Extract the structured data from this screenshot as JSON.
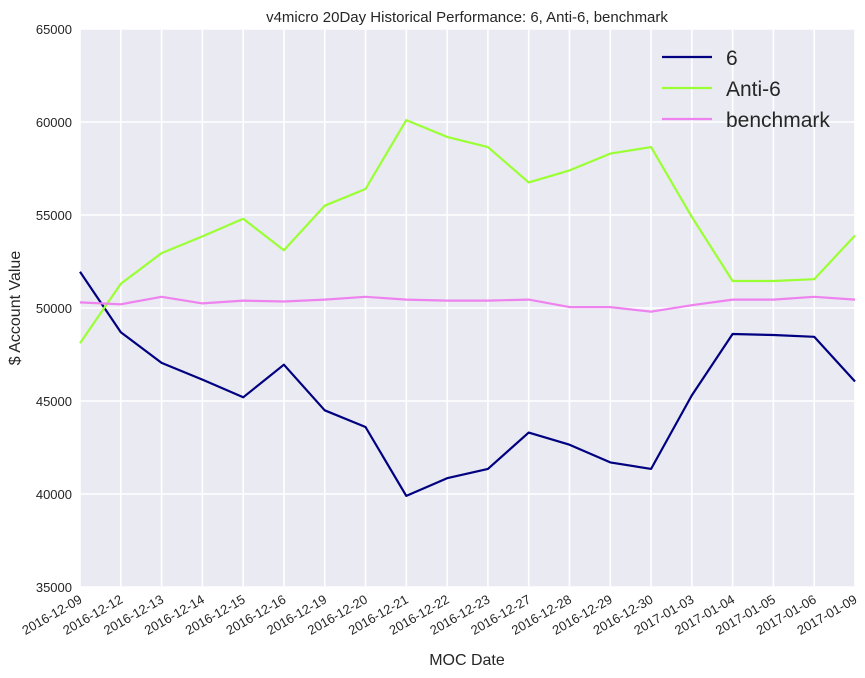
{
  "chart_data": {
    "type": "line",
    "title": "v4micro 20Day Historical Performance: 6, Anti-6, benchmark",
    "xlabel": "MOC Date",
    "ylabel": "$ Account Value",
    "ylim": [
      35000,
      65000
    ],
    "yticks": [
      35000,
      40000,
      45000,
      50000,
      55000,
      60000,
      65000
    ],
    "grid": true,
    "legend_position": "top-right",
    "categories": [
      "2016-12-09",
      "2016-12-12",
      "2016-12-13",
      "2016-12-14",
      "2016-12-15",
      "2016-12-16",
      "2016-12-19",
      "2016-12-20",
      "2016-12-21",
      "2016-12-22",
      "2016-12-23",
      "2016-12-27",
      "2016-12-28",
      "2016-12-29",
      "2016-12-30",
      "2017-01-03",
      "2017-01-04",
      "2017-01-05",
      "2017-01-06",
      "2017-01-09"
    ],
    "series": [
      {
        "name": "6",
        "color": "#000080",
        "values": [
          51950,
          48700,
          47050,
          46150,
          45200,
          46950,
          44500,
          43600,
          39900,
          40850,
          41350,
          43300,
          42650,
          41700,
          41350,
          45300,
          48600,
          48550,
          48450,
          46050
        ]
      },
      {
        "name": "Anti-6",
        "color": "#9aff33",
        "values": [
          48100,
          51300,
          52950,
          53850,
          54800,
          53100,
          55500,
          56400,
          60100,
          59200,
          58650,
          56750,
          57400,
          58300,
          58650,
          54900,
          51450,
          51450,
          51550,
          53900
        ]
      },
      {
        "name": "benchmark",
        "color": "#ee82ee",
        "values": [
          50300,
          50200,
          50600,
          50250,
          50400,
          50350,
          50450,
          50600,
          50450,
          50400,
          50400,
          50450,
          50050,
          50050,
          49800,
          50150,
          50450,
          50450,
          50600,
          50450
        ]
      }
    ]
  }
}
